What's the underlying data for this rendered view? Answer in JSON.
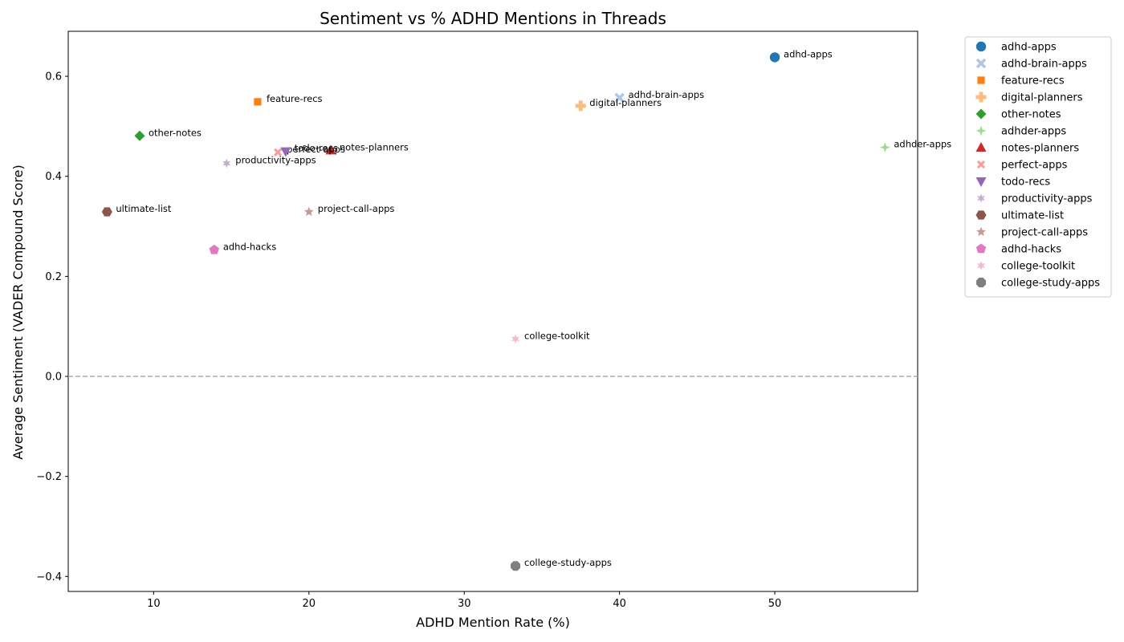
{
  "chart_data": {
    "type": "scatter",
    "title": "Sentiment vs % ADHD Mentions in Threads",
    "xlabel": "ADHD Mention Rate (%)",
    "ylabel": "Average Sentiment (VADER Compound Score)",
    "xlim": [
      4.5,
      59.2
    ],
    "ylim": [
      -0.43,
      0.69
    ],
    "xticks": [
      10,
      20,
      30,
      40,
      50
    ],
    "yticks": [
      -0.4,
      -0.2,
      0.0,
      0.2,
      0.4,
      0.6
    ],
    "ytick_labels": [
      "−0.4",
      "−0.2",
      "0.0",
      "0.2",
      "0.4",
      "0.6"
    ],
    "reference_line": {
      "y": 0.0,
      "style": "dashed",
      "color": "#aaaaaa"
    },
    "grid": false,
    "legend_position": "outside-right",
    "points": [
      {
        "name": "adhd-apps",
        "x": 50.0,
        "y": 0.638,
        "marker": "circle",
        "color": "#1f77b4"
      },
      {
        "name": "adhd-brain-apps",
        "x": 40.0,
        "y": 0.557,
        "marker": "x",
        "color": "#aec7e8"
      },
      {
        "name": "feature-recs",
        "x": 16.7,
        "y": 0.549,
        "marker": "square",
        "color": "#ff7f0e"
      },
      {
        "name": "digital-planners",
        "x": 37.5,
        "y": 0.541,
        "marker": "plus",
        "color": "#ffbb78"
      },
      {
        "name": "other-notes",
        "x": 9.1,
        "y": 0.481,
        "marker": "diamond",
        "color": "#2ca02c"
      },
      {
        "name": "adhder-apps",
        "x": 57.1,
        "y": 0.458,
        "marker": "thin-diamond",
        "color": "#98df8a"
      },
      {
        "name": "notes-planners",
        "x": 21.4,
        "y": 0.452,
        "marker": "triangle-up",
        "color": "#d62728"
      },
      {
        "name": "perfect-apps",
        "x": 18.0,
        "y": 0.448,
        "marker": "x-small",
        "color": "#ff9896"
      },
      {
        "name": "todo-recs",
        "x": 18.5,
        "y": 0.45,
        "marker": "triangle-down",
        "color": "#9467bd"
      },
      {
        "name": "productivity-apps",
        "x": 14.7,
        "y": 0.426,
        "marker": "star6",
        "color": "#c5b0d5"
      },
      {
        "name": "ultimate-list",
        "x": 7.0,
        "y": 0.329,
        "marker": "hexagon",
        "color": "#8c564b"
      },
      {
        "name": "project-call-apps",
        "x": 20.0,
        "y": 0.329,
        "marker": "star5",
        "color": "#c49c94"
      },
      {
        "name": "adhd-hacks",
        "x": 13.9,
        "y": 0.253,
        "marker": "pentagon",
        "color": "#e377c2"
      },
      {
        "name": "college-toolkit",
        "x": 33.3,
        "y": 0.075,
        "marker": "star6",
        "color": "#f7b6d2"
      },
      {
        "name": "college-study-apps",
        "x": 33.3,
        "y": -0.379,
        "marker": "octagon",
        "color": "#7f7f7f"
      }
    ]
  }
}
